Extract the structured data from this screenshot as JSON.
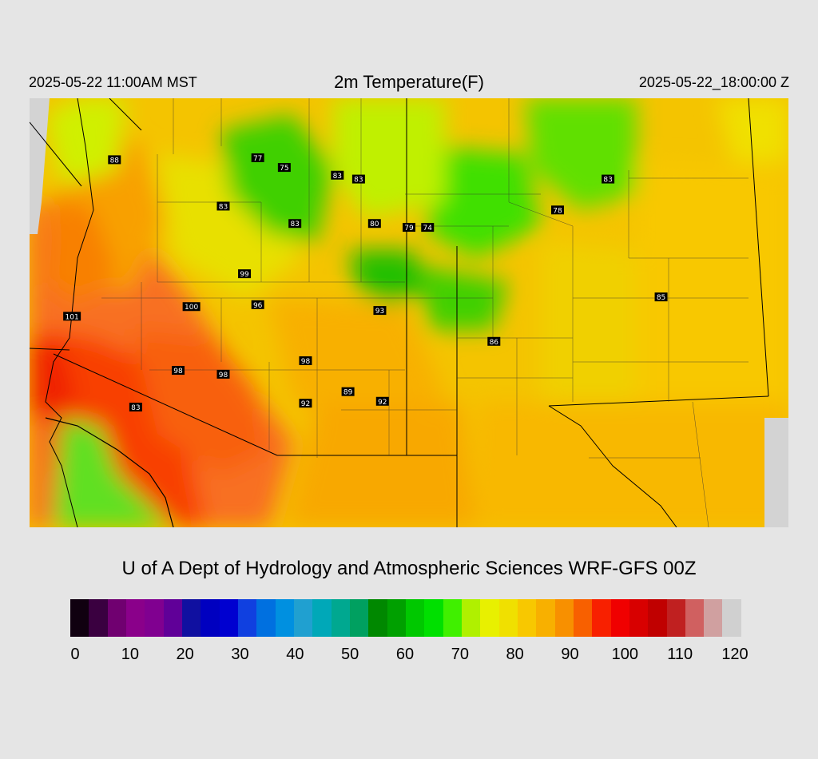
{
  "header": {
    "local_time": "2025-05-22 11:00AM MST",
    "title": "2m Temperature(F)",
    "valid_time": "2025-05-22_18:00:00 Z"
  },
  "map": {
    "description_icon": "temperature-map",
    "stations": [
      {
        "value": "88",
        "lon": -113.0,
        "lat": 40.6
      },
      {
        "value": "77",
        "lon": -110.3,
        "lat": 40.65
      },
      {
        "value": "75",
        "lon": -109.8,
        "lat": 40.4
      },
      {
        "value": "83",
        "lon": -108.8,
        "lat": 40.2
      },
      {
        "value": "83",
        "lon": -108.4,
        "lat": 40.1
      },
      {
        "value": "83",
        "lon": -110.95,
        "lat": 39.4
      },
      {
        "value": "83",
        "lon": -109.6,
        "lat": 38.95
      },
      {
        "value": "80",
        "lon": -108.1,
        "lat": 38.95
      },
      {
        "value": "79",
        "lon": -107.45,
        "lat": 38.85
      },
      {
        "value": "74",
        "lon": -107.1,
        "lat": 38.85
      },
      {
        "value": "83",
        "lon": -103.7,
        "lat": 40.1
      },
      {
        "value": "78",
        "lon": -104.65,
        "lat": 39.3
      },
      {
        "value": "99",
        "lon": -110.55,
        "lat": 37.65
      },
      {
        "value": "100",
        "lon": -111.55,
        "lat": 36.8
      },
      {
        "value": "96",
        "lon": -110.3,
        "lat": 36.85
      },
      {
        "value": "101",
        "lon": -113.8,
        "lat": 36.55
      },
      {
        "value": "93",
        "lon": -108.0,
        "lat": 36.7
      },
      {
        "value": "86",
        "lon": -105.85,
        "lat": 35.9
      },
      {
        "value": "85",
        "lon": -102.7,
        "lat": 37.05
      },
      {
        "value": "98",
        "lon": -111.8,
        "lat": 35.15
      },
      {
        "value": "98",
        "lon": -110.95,
        "lat": 35.05
      },
      {
        "value": "98",
        "lon": -109.4,
        "lat": 35.4
      },
      {
        "value": "89",
        "lon": -108.6,
        "lat": 34.6
      },
      {
        "value": "92",
        "lon": -109.4,
        "lat": 34.3
      },
      {
        "value": "92",
        "lon": -107.95,
        "lat": 34.35
      },
      {
        "value": "83",
        "lon": -112.6,
        "lat": 34.2
      }
    ]
  },
  "credit": "U of A Dept of Hydrology and Atmospheric Sciences WRF-GFS 00Z",
  "colorbar": {
    "colors": [
      "#100010",
      "#3a0040",
      "#700070",
      "#8a008a",
      "#800090",
      "#600098",
      "#1010a0",
      "#0000c0",
      "#0000d0",
      "#1040e0",
      "#0070e0",
      "#0090e0",
      "#20a0d0",
      "#00a8b8",
      "#00a890",
      "#00a060",
      "#008800",
      "#00a000",
      "#00c800",
      "#00e000",
      "#40f000",
      "#b0f000",
      "#e8f000",
      "#f0e000",
      "#f8c800",
      "#f8b000",
      "#f89000",
      "#f86000",
      "#f82000",
      "#f00000",
      "#d80000",
      "#c00000",
      "#c02020",
      "#d06060",
      "#d0a0a0",
      "#d0d0d0"
    ],
    "ticks": [
      "0",
      "10",
      "20",
      "30",
      "40",
      "50",
      "60",
      "70",
      "80",
      "90",
      "100",
      "110",
      "120"
    ]
  }
}
